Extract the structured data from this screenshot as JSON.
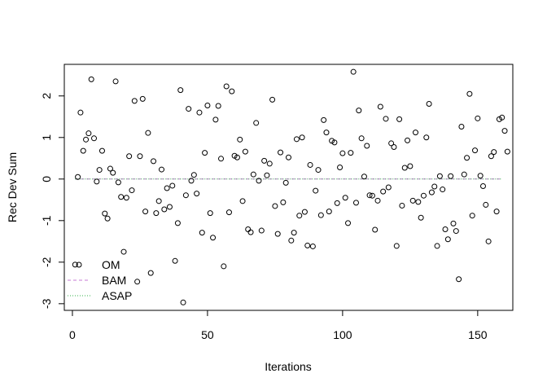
{
  "chart_data": {
    "type": "scatter",
    "xlabel": "Iterations",
    "ylabel": "Rec Dev Sum",
    "xlim": [
      -3,
      163
    ],
    "ylim": [
      -3.16,
      2.76
    ],
    "xticks": [
      0,
      50,
      100,
      150
    ],
    "yticks": [
      -3,
      -2,
      -1,
      0,
      1,
      2
    ],
    "grid": false,
    "legend_position": "bottom-left",
    "legend": [
      {
        "label": "OM",
        "style": "open-circle",
        "color": "#000000"
      },
      {
        "label": "BAM",
        "style": "dashed-line",
        "color": "#c77bd6"
      },
      {
        "label": "ASAP",
        "style": "dotted-line",
        "color": "#33b24a"
      }
    ],
    "series": [
      {
        "name": "OM",
        "color": "#000000",
        "points": [
          [
            1,
            -2.06
          ],
          [
            2,
            0.05
          ],
          [
            3,
            1.6
          ],
          [
            4,
            0.68
          ],
          [
            5,
            0.95
          ],
          [
            6,
            1.1
          ],
          [
            7,
            2.4
          ],
          [
            8,
            0.98
          ],
          [
            9,
            -0.06
          ],
          [
            10,
            0.22
          ],
          [
            11,
            0.68
          ],
          [
            12,
            -0.83
          ],
          [
            13,
            -0.95
          ],
          [
            14,
            0.25
          ],
          [
            15,
            0.15
          ],
          [
            16,
            2.35
          ],
          [
            17,
            -0.08
          ],
          [
            18,
            -0.43
          ],
          [
            19,
            -1.75
          ],
          [
            20,
            -0.45
          ],
          [
            21,
            0.55
          ],
          [
            22,
            -0.27
          ],
          [
            23,
            1.88
          ],
          [
            24,
            -2.47
          ],
          [
            25,
            0.55
          ],
          [
            26,
            1.93
          ],
          [
            27,
            -0.78
          ],
          [
            28,
            1.11
          ],
          [
            29,
            -2.26
          ],
          [
            30,
            0.43
          ],
          [
            31,
            -0.82
          ],
          [
            32,
            -0.53
          ],
          [
            33,
            0.23
          ],
          [
            34,
            -0.73
          ],
          [
            35,
            -0.22
          ],
          [
            36,
            -0.67
          ],
          [
            37,
            -0.16
          ],
          [
            38,
            -1.97
          ],
          [
            39,
            -1.06
          ],
          [
            40,
            2.14
          ],
          [
            41,
            -2.97
          ],
          [
            42,
            -0.39
          ],
          [
            43,
            1.69
          ],
          [
            44,
            -0.04
          ],
          [
            45,
            0.1
          ],
          [
            46,
            -0.35
          ],
          [
            47,
            1.6
          ],
          [
            48,
            -1.29
          ],
          [
            49,
            0.63
          ],
          [
            50,
            1.77
          ],
          [
            51,
            -0.82
          ],
          [
            52,
            -1.41
          ],
          [
            53,
            1.43
          ],
          [
            54,
            1.76
          ],
          [
            55,
            0.49
          ],
          [
            56,
            -2.1
          ],
          [
            57,
            2.23
          ],
          [
            58,
            -0.8
          ],
          [
            59,
            2.11
          ],
          [
            60,
            0.56
          ],
          [
            61,
            0.52
          ],
          [
            62,
            0.95
          ],
          [
            63,
            -0.53
          ],
          [
            64,
            0.66
          ],
          [
            65,
            -1.21
          ],
          [
            66,
            -1.28
          ],
          [
            67,
            0.11
          ],
          [
            68,
            1.35
          ],
          [
            69,
            -0.04
          ],
          [
            70,
            -1.24
          ],
          [
            71,
            0.44
          ],
          [
            72,
            0.09
          ],
          [
            73,
            0.37
          ],
          [
            74,
            1.91
          ],
          [
            75,
            -0.65
          ],
          [
            76,
            -1.32
          ],
          [
            77,
            0.64
          ],
          [
            78,
            -0.56
          ],
          [
            79,
            -0.09
          ],
          [
            80,
            0.52
          ],
          [
            81,
            -1.48
          ],
          [
            82,
            -1.29
          ],
          [
            83,
            0.96
          ],
          [
            84,
            -0.88
          ],
          [
            85,
            1.0
          ],
          [
            86,
            -0.79
          ],
          [
            87,
            -1.6
          ],
          [
            88,
            0.34
          ],
          [
            89,
            -1.62
          ],
          [
            90,
            -0.28
          ],
          [
            91,
            0.22
          ],
          [
            92,
            -0.87
          ],
          [
            93,
            1.42
          ],
          [
            94,
            1.12
          ],
          [
            95,
            -0.78
          ],
          [
            96,
            0.92
          ],
          [
            97,
            0.88
          ],
          [
            98,
            -0.58
          ],
          [
            99,
            0.28
          ],
          [
            100,
            0.62
          ],
          [
            101,
            -0.45
          ],
          [
            102,
            -1.06
          ],
          [
            103,
            0.63
          ],
          [
            104,
            2.58
          ],
          [
            105,
            -0.57
          ],
          [
            106,
            1.65
          ],
          [
            107,
            0.98
          ],
          [
            108,
            0.06
          ],
          [
            109,
            0.8
          ],
          [
            110,
            -0.39
          ],
          [
            111,
            -0.4
          ],
          [
            112,
            -1.22
          ],
          [
            113,
            -0.52
          ],
          [
            114,
            1.74
          ],
          [
            115,
            -0.3
          ],
          [
            116,
            1.45
          ],
          [
            117,
            -0.2
          ],
          [
            118,
            0.86
          ],
          [
            119,
            0.77
          ],
          [
            120,
            -1.61
          ],
          [
            121,
            1.44
          ],
          [
            122,
            -0.64
          ],
          [
            123,
            0.27
          ],
          [
            124,
            0.93
          ],
          [
            125,
            0.31
          ],
          [
            126,
            -0.52
          ],
          [
            127,
            1.12
          ],
          [
            128,
            -0.55
          ],
          [
            129,
            -0.93
          ],
          [
            130,
            -0.4
          ],
          [
            131,
            1.0
          ],
          [
            132,
            1.81
          ],
          [
            133,
            -0.32
          ],
          [
            134,
            -0.18
          ],
          [
            135,
            -1.61
          ],
          [
            136,
            0.07
          ],
          [
            137,
            -0.25
          ],
          [
            138,
            -1.21
          ],
          [
            139,
            -1.45
          ],
          [
            140,
            0.07
          ],
          [
            141,
            -1.07
          ],
          [
            142,
            -1.25
          ],
          [
            143,
            -2.41
          ],
          [
            144,
            1.26
          ],
          [
            145,
            0.11
          ],
          [
            146,
            0.51
          ],
          [
            147,
            2.05
          ],
          [
            148,
            -0.88
          ],
          [
            149,
            0.69
          ],
          [
            150,
            1.46
          ],
          [
            151,
            0.08
          ],
          [
            152,
            -0.17
          ],
          [
            153,
            -0.62
          ],
          [
            154,
            -1.5
          ],
          [
            155,
            0.55
          ],
          [
            156,
            0.65
          ],
          [
            157,
            -0.78
          ],
          [
            158,
            1.44
          ],
          [
            159,
            1.48
          ],
          [
            160,
            1.16
          ],
          [
            161,
            0.66
          ]
        ]
      },
      {
        "name": "BAM",
        "color": "#c77bd6",
        "style": "dashed",
        "x": [
          1,
          159
        ],
        "y": [
          0,
          0
        ]
      },
      {
        "name": "ASAP",
        "color": "#33b24a",
        "style": "dotted",
        "x": [
          1,
          159
        ],
        "y": [
          0,
          0
        ]
      }
    ]
  }
}
